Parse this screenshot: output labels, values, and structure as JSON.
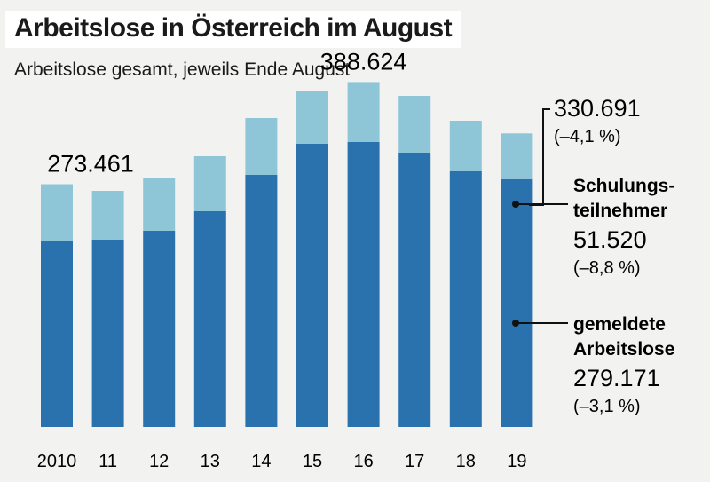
{
  "chart_data": {
    "type": "bar",
    "stacked": true,
    "title": "Arbeitslose in Österreich im August",
    "subtitle": "Arbeitslose gesamt, jeweils Ende August",
    "categories": [
      "2010",
      "11",
      "12",
      "13",
      "14",
      "15",
      "16",
      "17",
      "18",
      "19"
    ],
    "series": [
      {
        "name": "gemeldete Arbeitslose",
        "color": "#2a72ad",
        "values": [
          210000,
          211000,
          221000,
          243000,
          284000,
          319000,
          321000,
          309000,
          288000,
          279171
        ]
      },
      {
        "name": "Schulungsteilnehmer",
        "color": "#8ec6d8",
        "values": [
          63461,
          55000,
          60000,
          62000,
          64000,
          59000,
          67624,
          64000,
          57000,
          51520
        ]
      }
    ],
    "ylim": [
      0,
      400000
    ],
    "annotations": [
      {
        "category": "2010",
        "text": "273.461"
      },
      {
        "category": "16",
        "text": "388.624"
      }
    ],
    "legend_right": {
      "total_value": "330.691",
      "total_change": "(–4,1 %)",
      "schulung_label_line1": "Schulungs-",
      "schulung_label_line2": "teilnehmer",
      "schulung_value": "51.520",
      "schulung_change": "(–8,8 %)",
      "arbeitslose_label_line1": "gemeldete",
      "arbeitslose_label_line2": "Arbeitslose",
      "arbeitslose_value": "279.171",
      "arbeitslose_change": "(–3,1 %)"
    }
  }
}
